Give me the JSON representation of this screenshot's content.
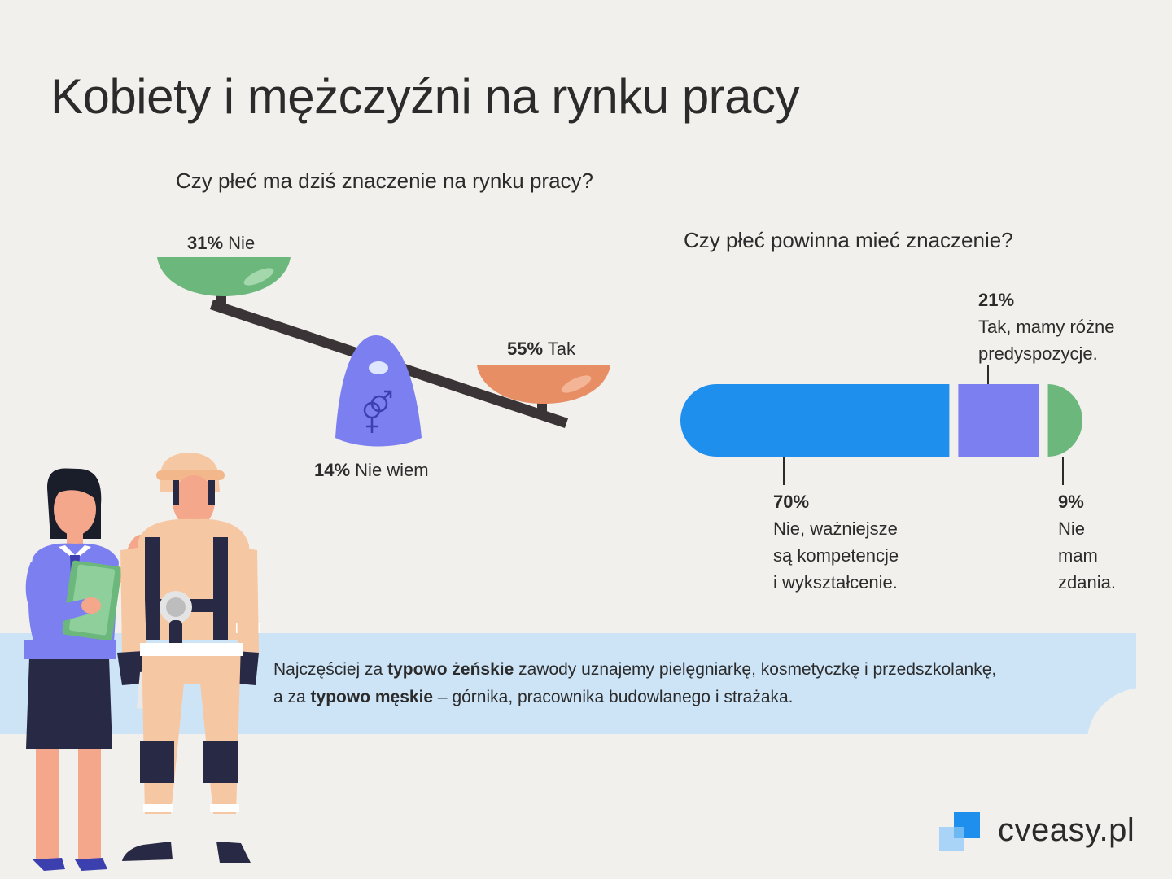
{
  "title": "Kobiety i mężczyźni na rynku pracy",
  "chart_data": [
    {
      "type": "pie",
      "title": "Czy płeć ma dziś znaczenie na rynku pracy?",
      "categories": [
        "Nie",
        "Tak",
        "Nie wiem"
      ],
      "values": [
        31,
        55,
        14
      ],
      "value_labels": [
        "31%",
        "55%",
        "14%"
      ],
      "colors": [
        "#6cb87c",
        "#e88e65",
        "#7b7ff0"
      ]
    },
    {
      "type": "bar",
      "stacked": true,
      "orientation": "horizontal",
      "title": "Czy płeć powinna mieć znaczenie?",
      "categories": [
        "Nie, ważniejsze są kompetencje i wykształcenie.",
        "Tak, mamy różne predyspozycje.",
        "Nie mam zdania."
      ],
      "values": [
        70,
        21,
        9
      ],
      "value_labels": [
        "70%",
        "21%",
        "9%"
      ],
      "label_lines": [
        [
          "Nie, ważniejsze",
          "są kompetencje",
          "i wykształcenie."
        ],
        [
          "Tak, mamy różne",
          "predyspozycje."
        ],
        [
          "Nie",
          "mam",
          "zdania."
        ]
      ],
      "colors": [
        "#1f8fee",
        "#7b7ff0",
        "#6cb87c"
      ]
    }
  ],
  "band": {
    "line1_a": "Najczęściej za ",
    "line1_b": "typowo żeńskie",
    "line1_c": " zawody uznajemy pielęgniarkę, kosmetyczkę i przedszkolankę,",
    "line2_a": "a za ",
    "line2_b": "typowo męskie",
    "line2_c": " – górnika, pracownika budowlanego i strażaka."
  },
  "logo": {
    "text": "cveasy.pl"
  },
  "colors": {
    "background": "#f2f0ec",
    "band": "#cde4f7",
    "beam": "#3a3436"
  }
}
